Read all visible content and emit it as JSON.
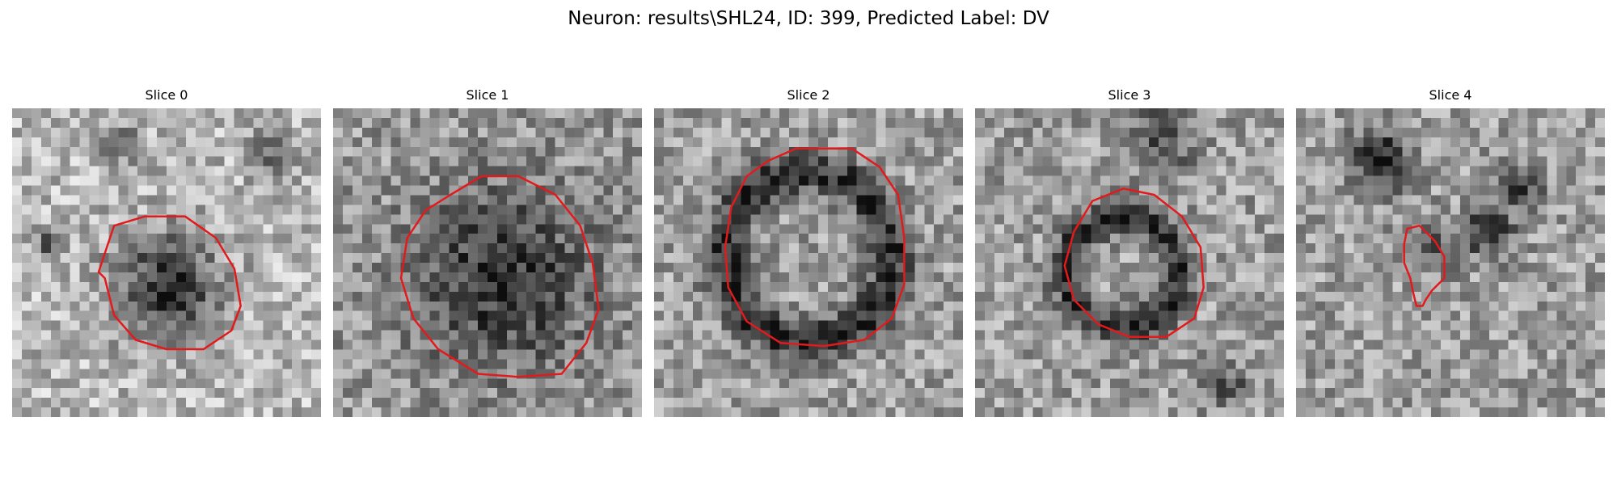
{
  "figure": {
    "title": "Neuron: results\\SHL24, ID: 399, Predicted Label: DV",
    "contour_color": "#e31a1c"
  },
  "slices": [
    {
      "title": "Slice 0"
    },
    {
      "title": "Slice 1"
    },
    {
      "title": "Slice 2"
    },
    {
      "title": "Slice 3"
    },
    {
      "title": "Slice 4"
    }
  ]
}
